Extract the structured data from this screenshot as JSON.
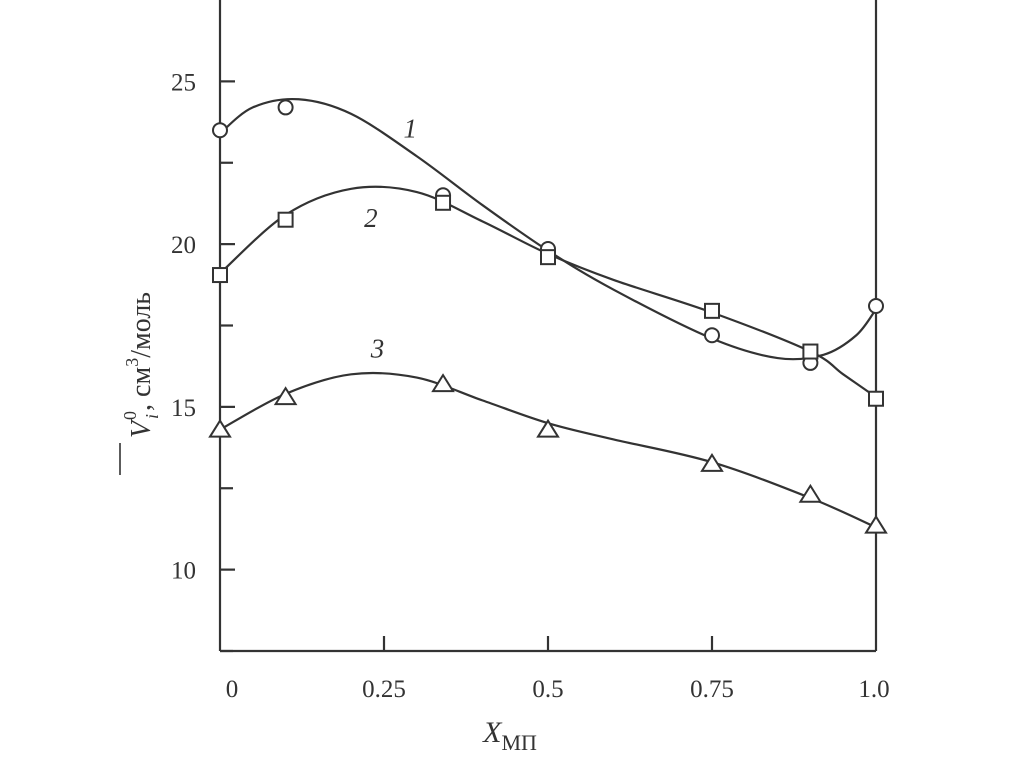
{
  "chart_data": {
    "type": "line",
    "title": "",
    "xlabel": "X",
    "xlabel_sub": "МП",
    "ylabel_symbol": "V",
    "ylabel_sub": "i",
    "ylabel_sup": "0",
    "ylabel_units": ", см",
    "ylabel_units_sup": "3",
    "ylabel_units_tail": "/моль",
    "xlim": [
      0,
      1.0
    ],
    "ylim": [
      7.5,
      27.5
    ],
    "x_ticks": [
      0,
      0.25,
      0.5,
      0.75,
      1.0
    ],
    "x_tick_labels": [
      "0",
      "0.25",
      "0.5",
      "0.75",
      "1.0"
    ],
    "y_ticks_major": [
      10,
      15,
      20,
      25
    ],
    "y_tick_labels": [
      "10",
      "15",
      "20",
      "25"
    ],
    "y_ticks_minor": [
      7.5,
      12.5,
      17.5,
      22.5
    ],
    "grid": false,
    "series": [
      {
        "name": "1",
        "marker": "circle",
        "x": [
          0,
          0.1,
          0.34,
          0.5,
          0.75,
          0.9,
          1.0
        ],
        "y": [
          23.5,
          24.2,
          21.5,
          19.85,
          17.2,
          16.35,
          18.1
        ],
        "curve": [
          [
            0,
            23.4
          ],
          [
            0.05,
            24.2
          ],
          [
            0.12,
            24.45
          ],
          [
            0.2,
            24.0
          ],
          [
            0.3,
            22.7
          ],
          [
            0.4,
            21.2
          ],
          [
            0.5,
            19.8
          ],
          [
            0.6,
            18.6
          ],
          [
            0.75,
            17.1
          ],
          [
            0.85,
            16.5
          ],
          [
            0.92,
            16.6
          ],
          [
            0.97,
            17.2
          ],
          [
            1.0,
            18.0
          ]
        ],
        "label": "1",
        "label_at": [
          0.29,
          23.55
        ]
      },
      {
        "name": "2",
        "marker": "square",
        "x": [
          0,
          0.1,
          0.34,
          0.5,
          0.75,
          0.9,
          1.0
        ],
        "y": [
          19.05,
          20.75,
          21.27,
          19.6,
          17.95,
          16.7,
          15.25
        ],
        "curve": [
          [
            0,
            19.1
          ],
          [
            0.1,
            20.9
          ],
          [
            0.2,
            21.7
          ],
          [
            0.3,
            21.6
          ],
          [
            0.4,
            20.7
          ],
          [
            0.5,
            19.7
          ],
          [
            0.6,
            18.9
          ],
          [
            0.75,
            17.9
          ],
          [
            0.9,
            16.7
          ],
          [
            0.95,
            16.0
          ],
          [
            1.0,
            15.3
          ]
        ],
        "label": "2",
        "label_at": [
          0.23,
          20.8
        ]
      },
      {
        "name": "3",
        "marker": "triangle",
        "x": [
          0,
          0.1,
          0.34,
          0.5,
          0.75,
          0.9,
          1.0
        ],
        "y": [
          14.3,
          15.3,
          15.7,
          14.3,
          13.25,
          12.3,
          11.35
        ],
        "curve": [
          [
            0,
            14.3
          ],
          [
            0.1,
            15.4
          ],
          [
            0.2,
            16.0
          ],
          [
            0.3,
            15.9
          ],
          [
            0.4,
            15.2
          ],
          [
            0.5,
            14.5
          ],
          [
            0.6,
            14.0
          ],
          [
            0.75,
            13.3
          ],
          [
            0.9,
            12.2
          ],
          [
            1.0,
            11.3
          ]
        ],
        "label": "3",
        "label_at": [
          0.24,
          16.8
        ]
      }
    ]
  }
}
